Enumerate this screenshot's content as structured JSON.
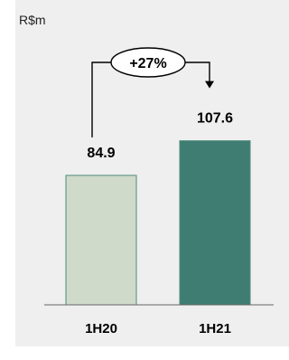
{
  "chart_data": {
    "type": "bar",
    "unit_label": "R$m",
    "categories": [
      "1H20",
      "1H21"
    ],
    "values": [
      84.9,
      107.6
    ],
    "value_labels": [
      "84.9",
      "107.6"
    ],
    "bar_colors": [
      "#cfdacb",
      "#3f7d72"
    ],
    "bar_stroke": "#4f8a7a",
    "change_label": "+27%",
    "ylim": [
      0,
      140
    ],
    "title": "",
    "xlabel": "",
    "ylabel": ""
  }
}
